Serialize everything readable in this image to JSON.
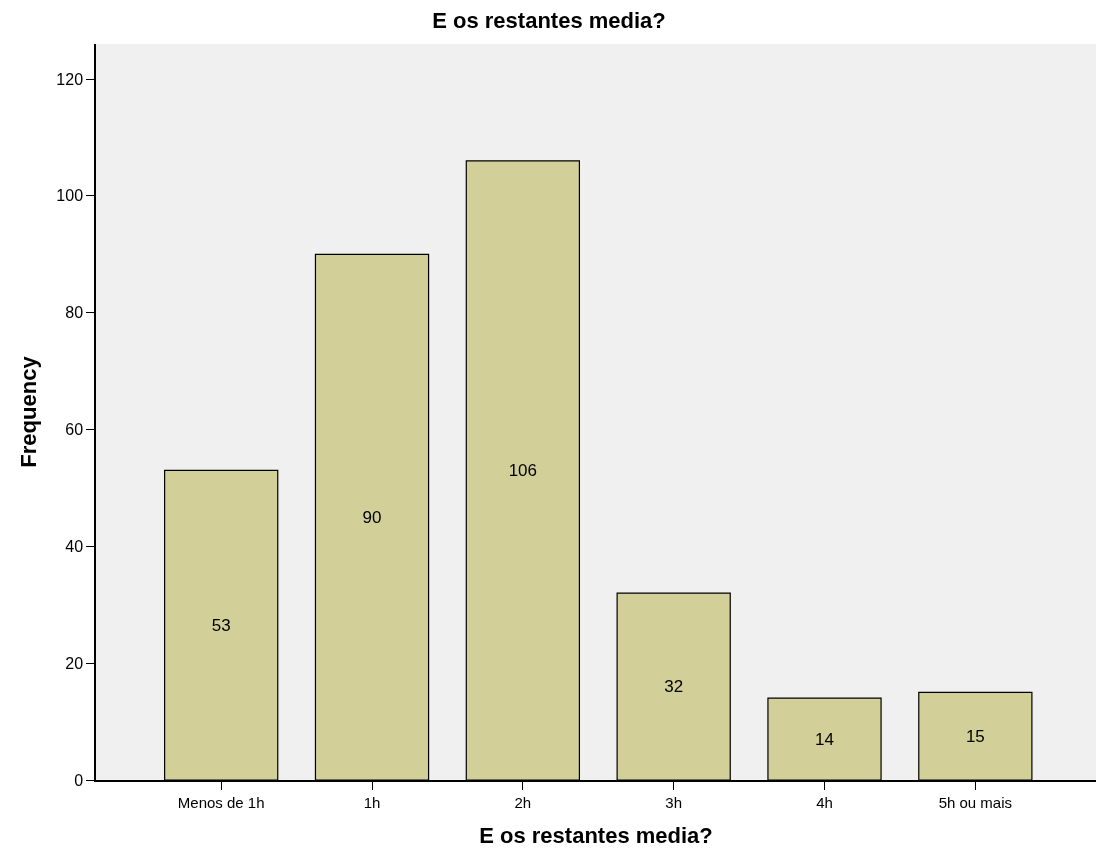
{
  "chart_data": {
    "type": "bar",
    "title": "E os restantes media?",
    "xlabel": "E os restantes media?",
    "ylabel": "Frequency",
    "categories": [
      "Menos de 1h",
      "1h",
      "2h",
      "3h",
      "4h",
      "5h ou mais"
    ],
    "values": [
      53,
      90,
      106,
      32,
      14,
      15
    ],
    "color": "#d3cf98",
    "ylim": [
      0,
      126
    ],
    "yticks": [
      0,
      20,
      40,
      60,
      80,
      100,
      120
    ],
    "grid": false,
    "data_labels": true
  }
}
